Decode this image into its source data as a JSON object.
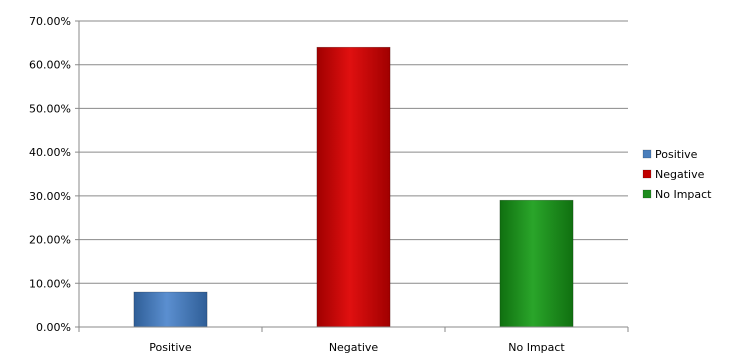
{
  "chart_data": {
    "type": "bar",
    "categories": [
      "Positive",
      "Negative",
      "No Impact"
    ],
    "values": [
      8.0,
      64.0,
      29.0
    ],
    "value_format": "percent",
    "title": "",
    "xlabel": "",
    "ylabel": "",
    "ylim": [
      0,
      70
    ],
    "ytick_step": 10,
    "ytick_labels": [
      "0.00%",
      "10.00%",
      "20.00%",
      "30.00%",
      "40.00%",
      "50.00%",
      "60.00%",
      "70.00%"
    ],
    "grid": true,
    "legend_position": "right",
    "legend": [
      {
        "label": "Positive",
        "color": "#4a7ebb"
      },
      {
        "label": "Negative",
        "color": "#c00000"
      },
      {
        "label": "No Impact",
        "color": "#1e8c1e"
      }
    ],
    "colors": [
      "#4a7ebb",
      "#c00000",
      "#1e8c1e"
    ]
  }
}
